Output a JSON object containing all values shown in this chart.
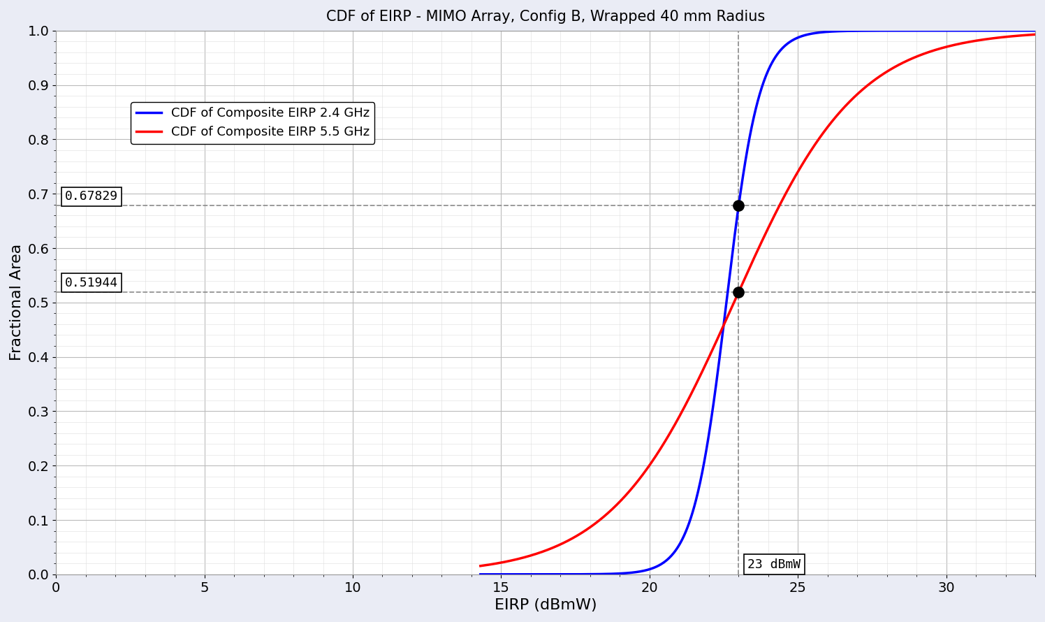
{
  "title": "CDF of EIRP - MIMO Array, Config B, Wrapped 40 mm Radius",
  "xlabel": "EIRP (dBmW)",
  "ylabel": "Fractional Area",
  "xlim": [
    0,
    33
  ],
  "ylim": [
    0,
    1.0
  ],
  "xticks": [
    0,
    5,
    10,
    15,
    20,
    25,
    30
  ],
  "yticks": [
    0,
    0.1,
    0.2,
    0.3,
    0.4,
    0.5,
    0.6,
    0.7,
    0.8,
    0.9,
    1.0
  ],
  "blue_label": "CDF of Composite EIRP 2.4 GHz",
  "red_label": "CDF of Composite EIRP 5.5 GHz",
  "blue_color": "#0000FF",
  "red_color": "#FF0000",
  "vline_x": 23,
  "hline1_y": 0.67829,
  "hline2_y": 0.51944,
  "hline1_label": "0.67829",
  "hline2_label": "0.51944",
  "vline_label": "23 dBmW",
  "background_color": "#EAECF5",
  "plot_bg_color": "#FFFFFF",
  "grid_major_color": "#BBBBBB",
  "grid_minor_color": "#DDDDDD",
  "blue_k": 1.05,
  "blue_c": 20.8,
  "red_k": 0.42,
  "red_c": 24.2
}
